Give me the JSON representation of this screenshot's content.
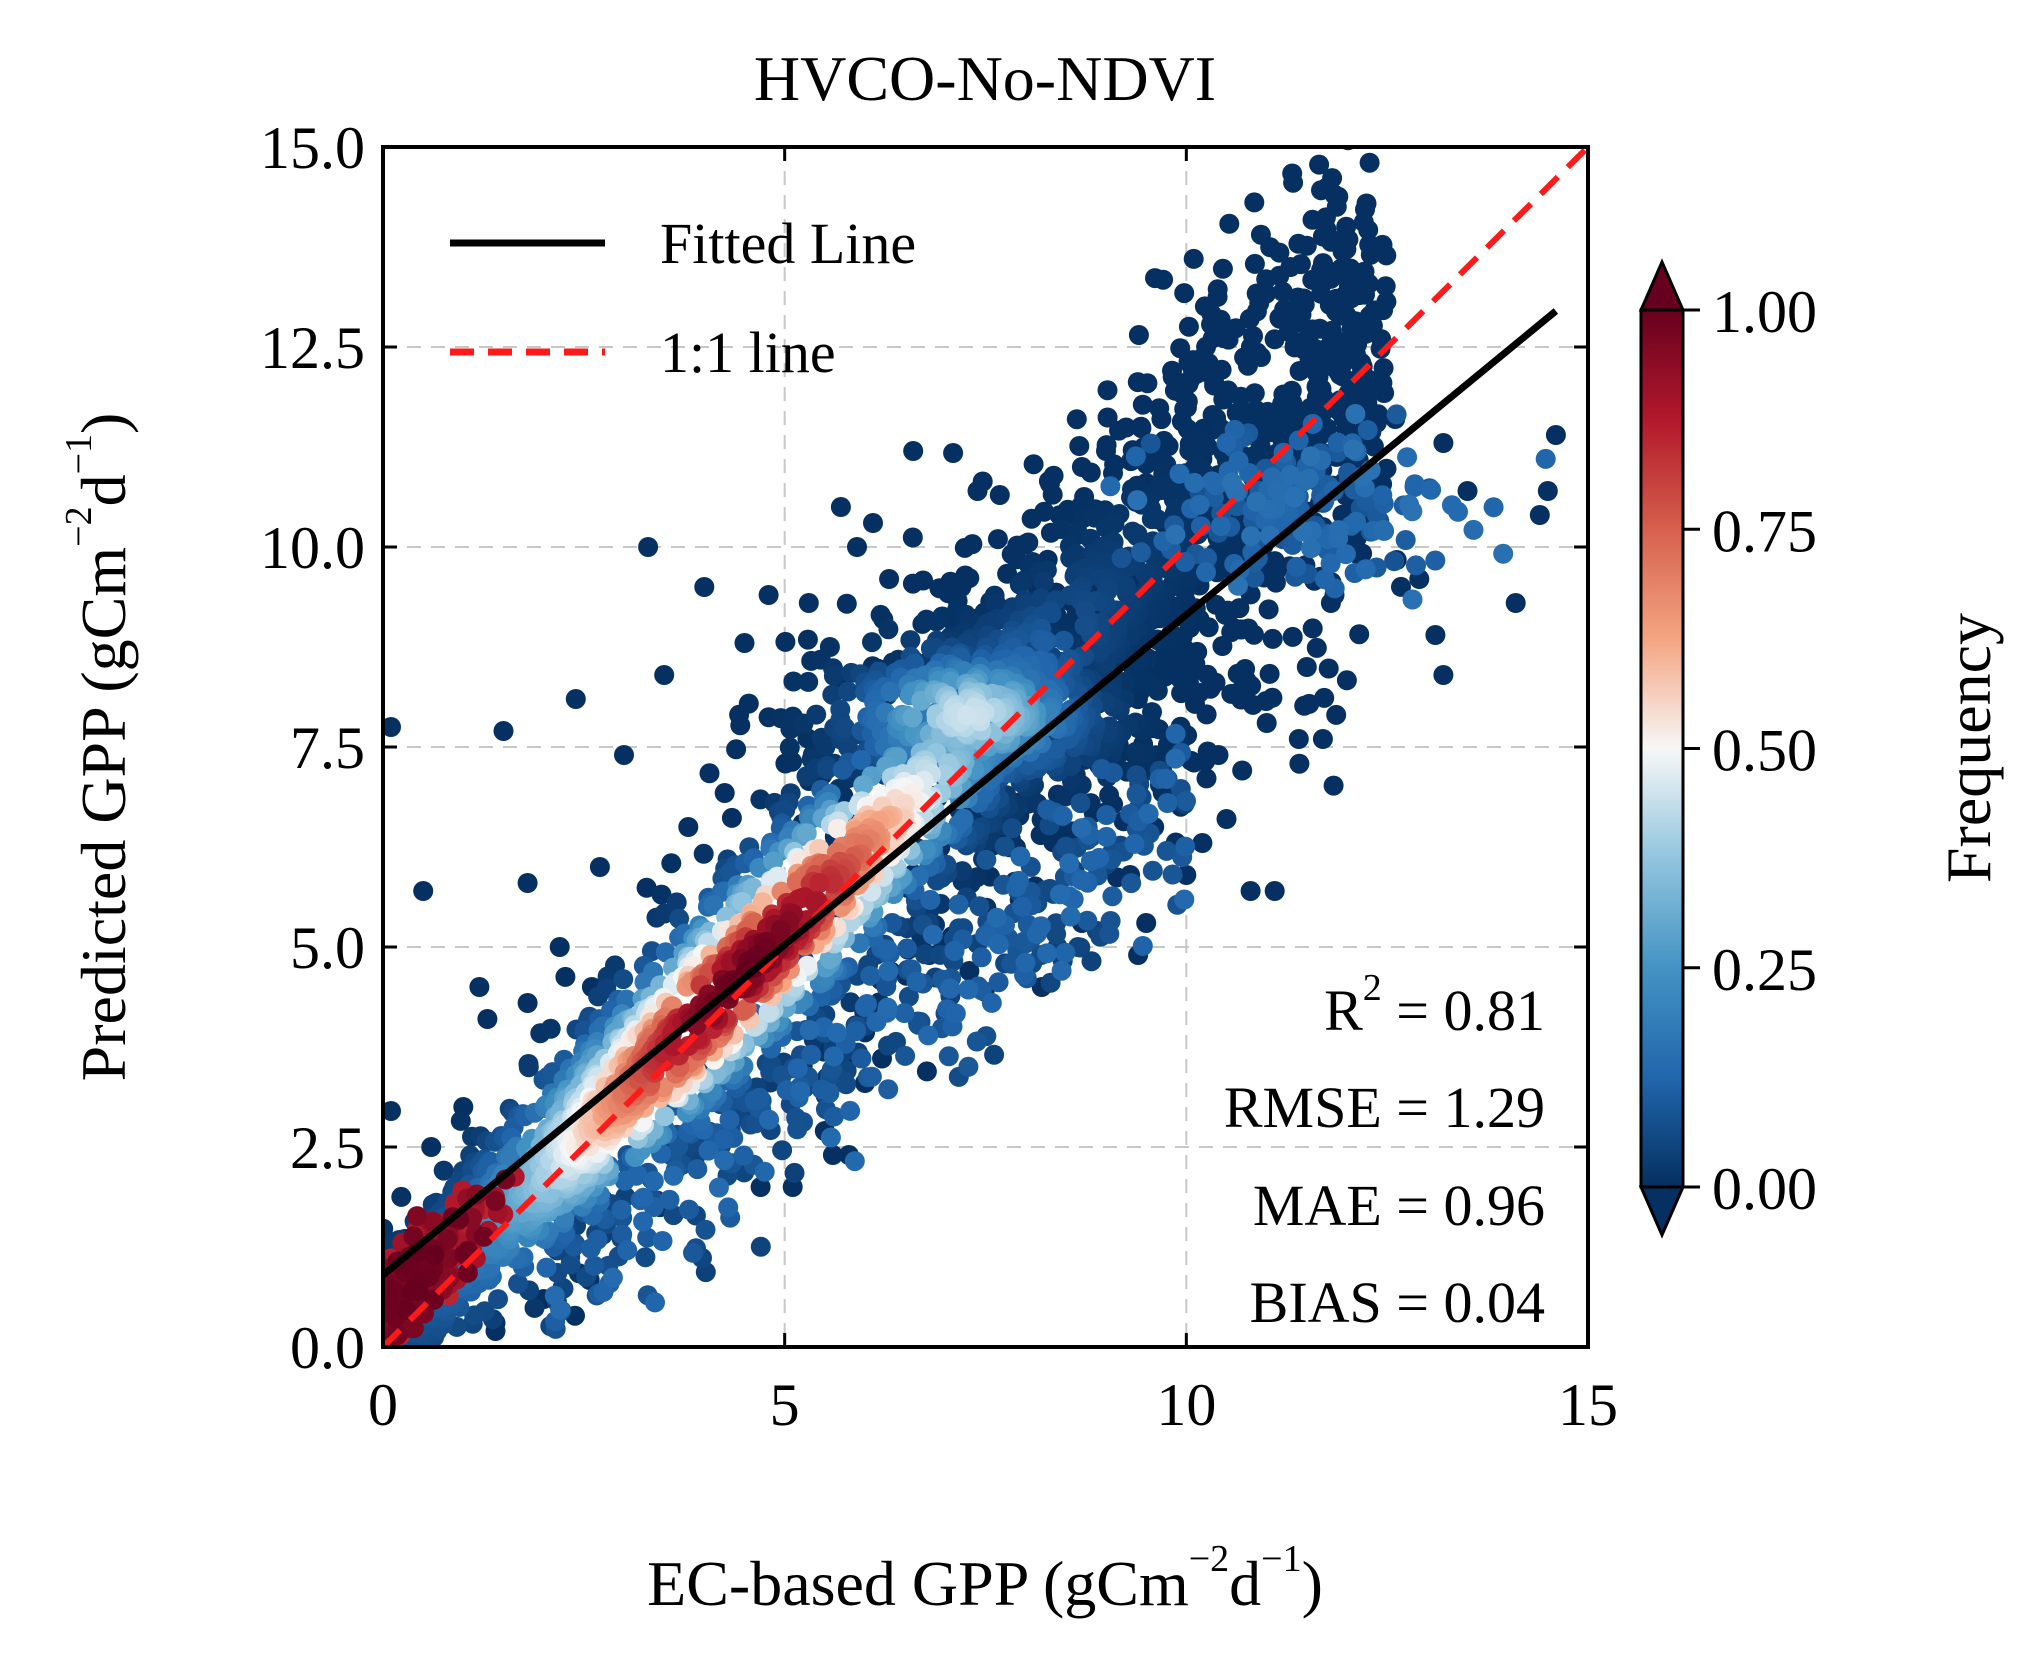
{
  "chart_data": {
    "type": "scatter",
    "title": "HVCO-No-NDVI",
    "xlabel": "EC-based GPP (gCm",
    "ylabel": "Predicted GPP (gCm",
    "unit_exp1": "−2",
    "unit_d": "d",
    "unit_exp2": "−1",
    "unit_close": ")",
    "xlim": [
      0,
      15
    ],
    "ylim": [
      0,
      15
    ],
    "xticks": [
      "0",
      "5",
      "10",
      "15"
    ],
    "yticks": [
      "0.0",
      "2.5",
      "5.0",
      "7.5",
      "10.0",
      "12.5",
      "15.0"
    ],
    "grid": true,
    "legend_position": "upper-left",
    "legend": [
      {
        "name": "Fitted Line",
        "color": "#000000",
        "style": "solid"
      },
      {
        "name": "1:1 line",
        "color": "#ff1a1a",
        "style": "dashed"
      }
    ],
    "fitted_line": {
      "x": [
        0,
        14.6
      ],
      "y": [
        0.9,
        12.95
      ]
    },
    "identity_line": {
      "x": [
        0,
        15
      ],
      "y": [
        0,
        15
      ]
    },
    "stats": {
      "r2_label": "R",
      "r2_sup": "2",
      "r2_value": " = 0.81",
      "rmse": "RMSE = 1.29",
      "mae": "MAE = 0.96",
      "bias": "BIAS = 0.04"
    },
    "colorbar": {
      "label": "Frequency",
      "ticks": [
        "0.00",
        "0.25",
        "0.50",
        "0.75",
        "1.00"
      ],
      "colormap": [
        "#053061",
        "#2166ac",
        "#4393c3",
        "#92c5de",
        "#f7f7f7",
        "#f4a582",
        "#d6604d",
        "#b2182b",
        "#67001f"
      ]
    },
    "outlier_points": [
      [
        0.1,
        7.75
      ],
      [
        0.1,
        2.95
      ],
      [
        0.5,
        5.7
      ],
      [
        1.5,
        7.7
      ],
      [
        1.8,
        5.8
      ],
      [
        2.4,
        8.1
      ],
      [
        2.6,
        4.5
      ],
      [
        1.2,
        4.5
      ],
      [
        1.8,
        4.3
      ],
      [
        1.3,
        4.1
      ],
      [
        2.0,
        0.6
      ],
      [
        0.8,
        0.55
      ],
      [
        1.4,
        0.3
      ],
      [
        1.4,
        0.2
      ],
      [
        0.6,
        2.5
      ],
      [
        1.0,
        3.0
      ],
      [
        3.5,
        8.4
      ],
      [
        4.5,
        8.8
      ],
      [
        3.3,
        10.0
      ],
      [
        3.0,
        7.4
      ],
      [
        5.7,
        10.5
      ],
      [
        6.6,
        11.2
      ],
      [
        7.4,
        10.7
      ],
      [
        6.1,
        10.3
      ],
      [
        5.9,
        10.0
      ],
      [
        6.3,
        9.6
      ],
      [
        7.2,
        9.5
      ],
      [
        8.7,
        11.0
      ],
      [
        9.0,
        11.2
      ],
      [
        8.6,
        10.4
      ],
      [
        9.5,
        10.8
      ],
      [
        10.2,
        11.1
      ],
      [
        10.4,
        10.9
      ],
      [
        10.6,
        11.4
      ],
      [
        11.3,
        11.0
      ],
      [
        12.2,
        11.4
      ],
      [
        12.6,
        11.6
      ],
      [
        13.2,
        11.3
      ],
      [
        13.5,
        10.7
      ],
      [
        14.6,
        11.4
      ],
      [
        14.5,
        10.7
      ],
      [
        14.4,
        10.4
      ],
      [
        14.1,
        9.3
      ],
      [
        13.1,
        8.9
      ],
      [
        13.2,
        8.4
      ],
      [
        12.9,
        9.6
      ],
      [
        11.8,
        9.3
      ],
      [
        11.5,
        8.5
      ],
      [
        11.0,
        7.8
      ],
      [
        11.4,
        7.6
      ],
      [
        10.4,
        7.4
      ],
      [
        11.7,
        7.6
      ],
      [
        10.8,
        5.7
      ],
      [
        11.1,
        5.7
      ],
      [
        10.2,
        6.3
      ],
      [
        10.5,
        6.6
      ],
      [
        10.0,
        5.9
      ],
      [
        9.5,
        5.3
      ],
      [
        9.4,
        4.9
      ],
      [
        9.3,
        5.9
      ],
      [
        8.7,
        5.3
      ],
      [
        8.2,
        4.5
      ],
      [
        9.6,
        6.5
      ],
      [
        9.7,
        7.2
      ],
      [
        3.0,
        3.0
      ],
      [
        5.1,
        2.0
      ],
      [
        5.6,
        2.4
      ],
      [
        5.8,
        2.4
      ],
      [
        4.7,
        2.0
      ],
      [
        4.4,
        3.0
      ],
      [
        6.8,
        4.9
      ],
      [
        7.3,
        4.7
      ],
      [
        6.0,
        3.3
      ],
      [
        5.5,
        2.7
      ],
      [
        8.6,
        7.0
      ],
      [
        8.1,
        8.7
      ],
      [
        4.0,
        9.5
      ],
      [
        4.8,
        9.4
      ],
      [
        5.3,
        9.3
      ],
      [
        2.7,
        6.0
      ],
      [
        2.2,
        5.0
      ],
      [
        3.8,
        6.5
      ],
      [
        7.9,
        9.2
      ]
    ]
  }
}
